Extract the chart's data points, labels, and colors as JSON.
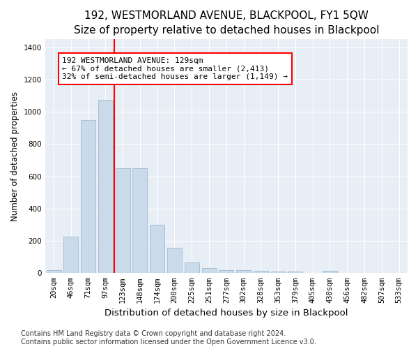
{
  "title": "192, WESTMORLAND AVENUE, BLACKPOOL, FY1 5QW",
  "subtitle": "Size of property relative to detached houses in Blackpool",
  "xlabel": "Distribution of detached houses by size in Blackpool",
  "ylabel": "Number of detached properties",
  "footer_line1": "Contains HM Land Registry data © Crown copyright and database right 2024.",
  "footer_line2": "Contains public sector information licensed under the Open Government Licence v3.0.",
  "categories": [
    "20sqm",
    "46sqm",
    "71sqm",
    "97sqm",
    "123sqm",
    "148sqm",
    "174sqm",
    "200sqm",
    "225sqm",
    "251sqm",
    "277sqm",
    "302sqm",
    "328sqm",
    "353sqm",
    "379sqm",
    "405sqm",
    "430sqm",
    "456sqm",
    "482sqm",
    "507sqm",
    "533sqm"
  ],
  "values": [
    20,
    225,
    950,
    1075,
    650,
    650,
    300,
    155,
    65,
    30,
    20,
    20,
    15,
    10,
    10,
    0,
    15,
    0,
    0,
    0,
    0
  ],
  "bar_color": "#c9daea",
  "bar_edge_color": "#aabfd4",
  "vline_color": "red",
  "vline_x_index": 4,
  "annotation_text": "192 WESTMORLAND AVENUE: 129sqm\n← 67% of detached houses are smaller (2,413)\n32% of semi-detached houses are larger (1,149) →",
  "annotation_box_color": "white",
  "annotation_box_edge_color": "red",
  "ylim": [
    0,
    1450
  ],
  "yticks": [
    0,
    200,
    400,
    600,
    800,
    1000,
    1200,
    1400
  ],
  "plot_bg_color": "#e8eef5",
  "grid_color": "white",
  "title_fontsize": 11,
  "xlabel_fontsize": 9.5,
  "ylabel_fontsize": 8.5,
  "tick_fontsize": 7.5,
  "annotation_fontsize": 8,
  "footer_fontsize": 7
}
